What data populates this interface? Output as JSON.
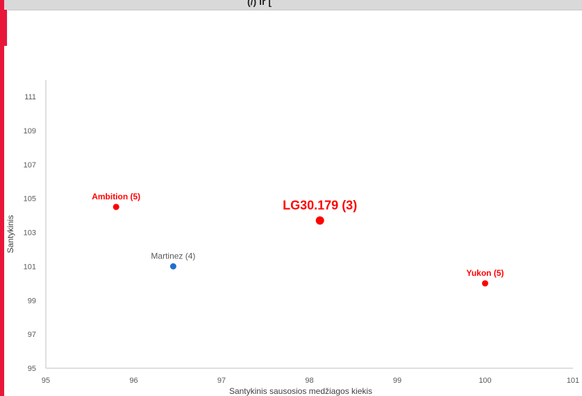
{
  "header": {
    "title_fragment": "(/) ir ["
  },
  "chart_data": {
    "type": "scatter",
    "xlabel": "Santykinis sausosios medžiagos kiekis",
    "ylabel": "Santykinis",
    "xlim": [
      95,
      101
    ],
    "ylim": [
      95,
      111
    ],
    "x_ticks": [
      95,
      96,
      97,
      98,
      99,
      100,
      101
    ],
    "y_ticks": [
      95,
      97,
      99,
      101,
      103,
      105,
      107,
      109,
      111
    ],
    "grid": false,
    "points": [
      {
        "label": "Ambition (5)",
        "x": 95.8,
        "y": 104.5,
        "color": "#ff0000",
        "label_color": "#ff0000",
        "bold": true
      },
      {
        "label": "Martinez (4)",
        "x": 96.45,
        "y": 101.0,
        "color": "#1f6fd0",
        "label_color": "#595959",
        "bold": false
      },
      {
        "label": "LG30.179 (3)",
        "x": 98.12,
        "y": 103.7,
        "color": "#ff0000",
        "label_color": "#ff0000",
        "bold": true,
        "emphasis": true
      },
      {
        "label": "Yukon (5)",
        "x": 100.0,
        "y": 100.0,
        "color": "#ff0000",
        "label_color": "#ff0000",
        "bold": true
      }
    ]
  }
}
